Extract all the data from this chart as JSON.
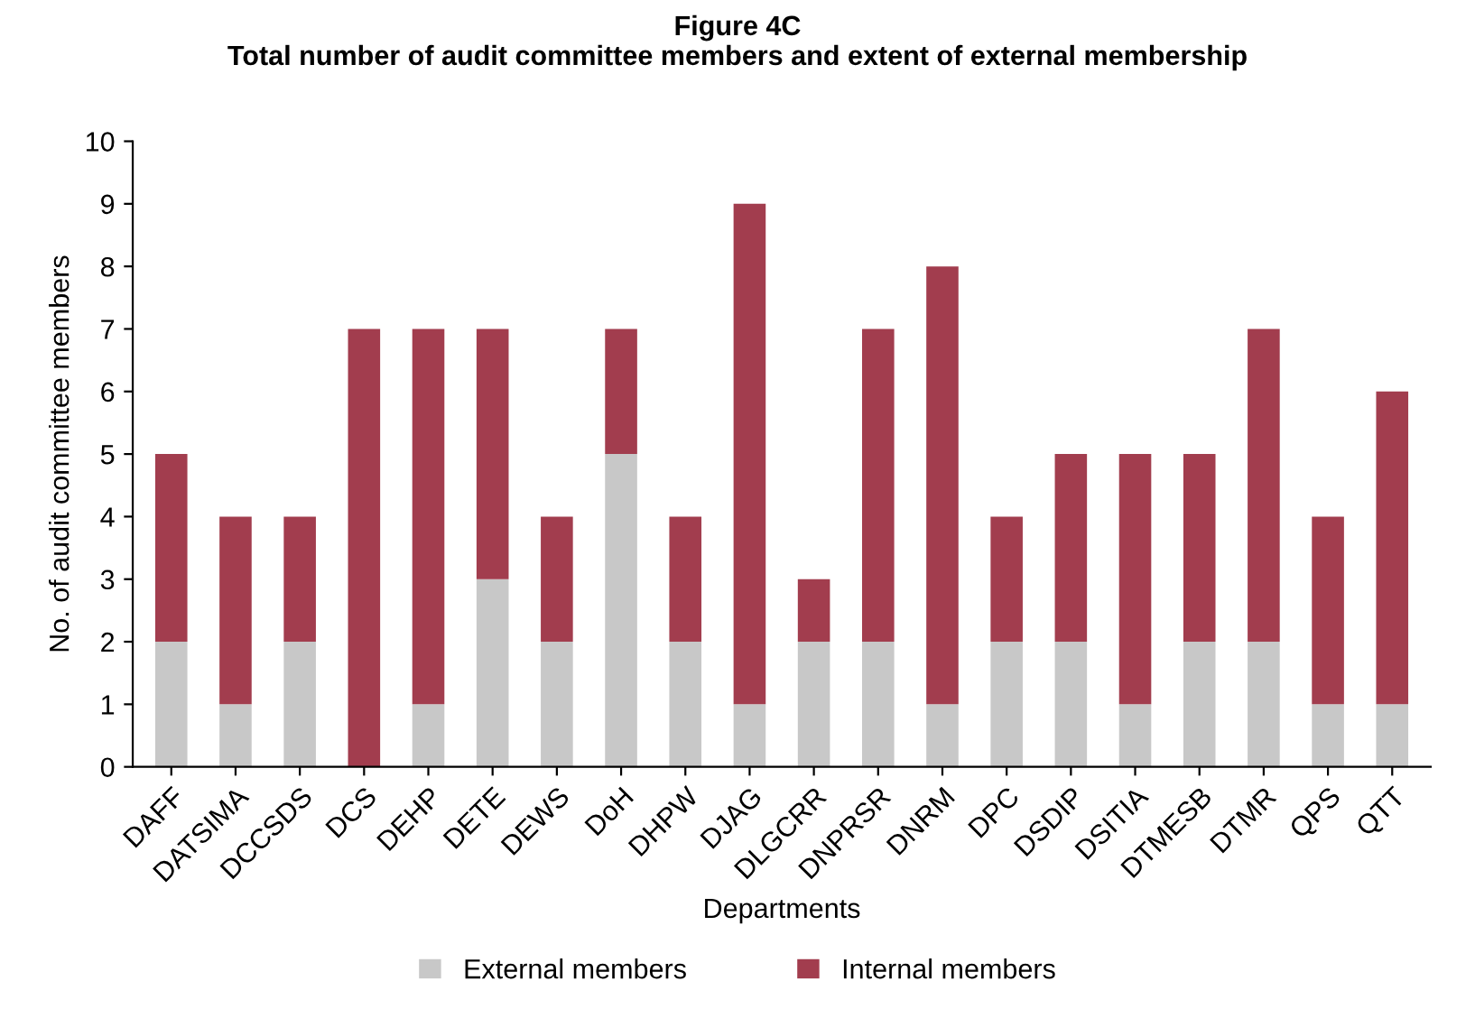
{
  "chart_data": {
    "type": "bar",
    "title": "Figure 4C\nTotal number of audit committee members and extent of external membership",
    "xlabel": "Departments",
    "ylabel": "No. of audit committee members",
    "categories": [
      "DAFF",
      "DATSIMA",
      "DCCSDS",
      "DCS",
      "DEHP",
      "DETE",
      "DEWS",
      "DoH",
      "DHPW",
      "DJAG",
      "DLGCRR",
      "DNPRSR",
      "DNRM",
      "DPC",
      "DSDIP",
      "DSITIA",
      "DTMESB",
      "DTMR",
      "QPS",
      "QTT"
    ],
    "stacked": true,
    "series": [
      {
        "name": "External members",
        "color": "#c8c8c8",
        "values": [
          2,
          1,
          2,
          0,
          1,
          3,
          2,
          5,
          2,
          1,
          2,
          2,
          1,
          2,
          2,
          1,
          2,
          2,
          1,
          1
        ]
      },
      {
        "name": "Internal members",
        "color": "#a23d4e",
        "values": [
          3,
          3,
          2,
          7,
          6,
          4,
          2,
          2,
          2,
          8,
          1,
          5,
          7,
          2,
          3,
          4,
          3,
          5,
          3,
          5
        ]
      }
    ],
    "ylim": [
      0,
      10
    ],
    "yticks": [
      0,
      1,
      2,
      3,
      4,
      5,
      6,
      7,
      8,
      9,
      10
    ],
    "grid": false,
    "legend": "bottom"
  }
}
